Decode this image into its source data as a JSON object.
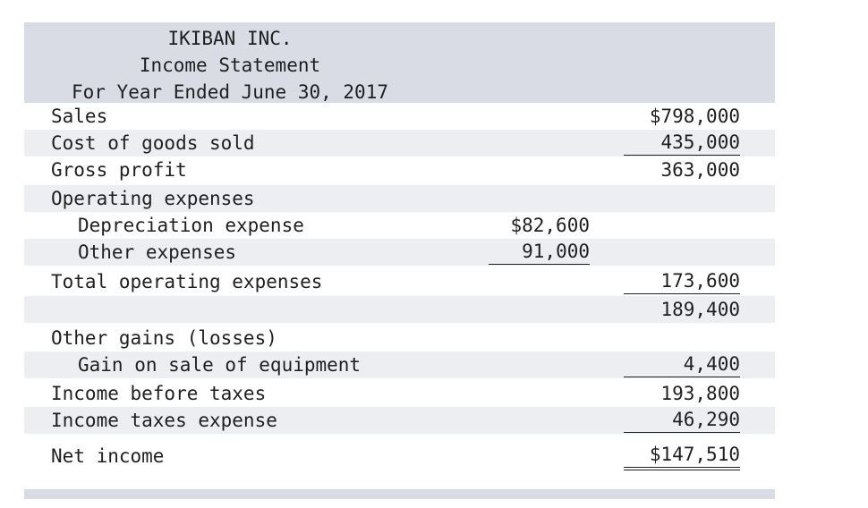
{
  "header": {
    "company": "IKIBAN INC.",
    "statement": "Income Statement",
    "period": "For Year Ended June 30, 2017"
  },
  "rows": [
    {
      "label": "Sales",
      "col1": "",
      "col2": "$798,000"
    },
    {
      "label": "Cost of goods sold",
      "col1": "",
      "col2": "435,000"
    },
    {
      "label": "Gross profit",
      "col1": "",
      "col2": "363,000"
    },
    {
      "label": "Operating expenses",
      "col1": "",
      "col2": ""
    },
    {
      "label": "Depreciation expense",
      "col1": "$82,600",
      "col2": ""
    },
    {
      "label": "Other expenses",
      "col1": "91,000",
      "col2": ""
    },
    {
      "label": "Total operating expenses",
      "col1": "",
      "col2": "173,600"
    },
    {
      "label": "",
      "col1": "",
      "col2": "189,400"
    },
    {
      "label": "Other gains (losses)",
      "col1": "",
      "col2": ""
    },
    {
      "label": "Gain on sale of equipment",
      "col1": "",
      "col2": "4,400"
    },
    {
      "label": "Income before taxes",
      "col1": "",
      "col2": "193,800"
    },
    {
      "label": "Income taxes expense",
      "col1": "",
      "col2": "46,290"
    },
    {
      "label": "Net income",
      "col1": "",
      "col2": "$147,510"
    }
  ],
  "colors": {
    "header_bg": "#d9dce5",
    "row_shade": "#eceef2",
    "text": "#1f1f1f"
  }
}
